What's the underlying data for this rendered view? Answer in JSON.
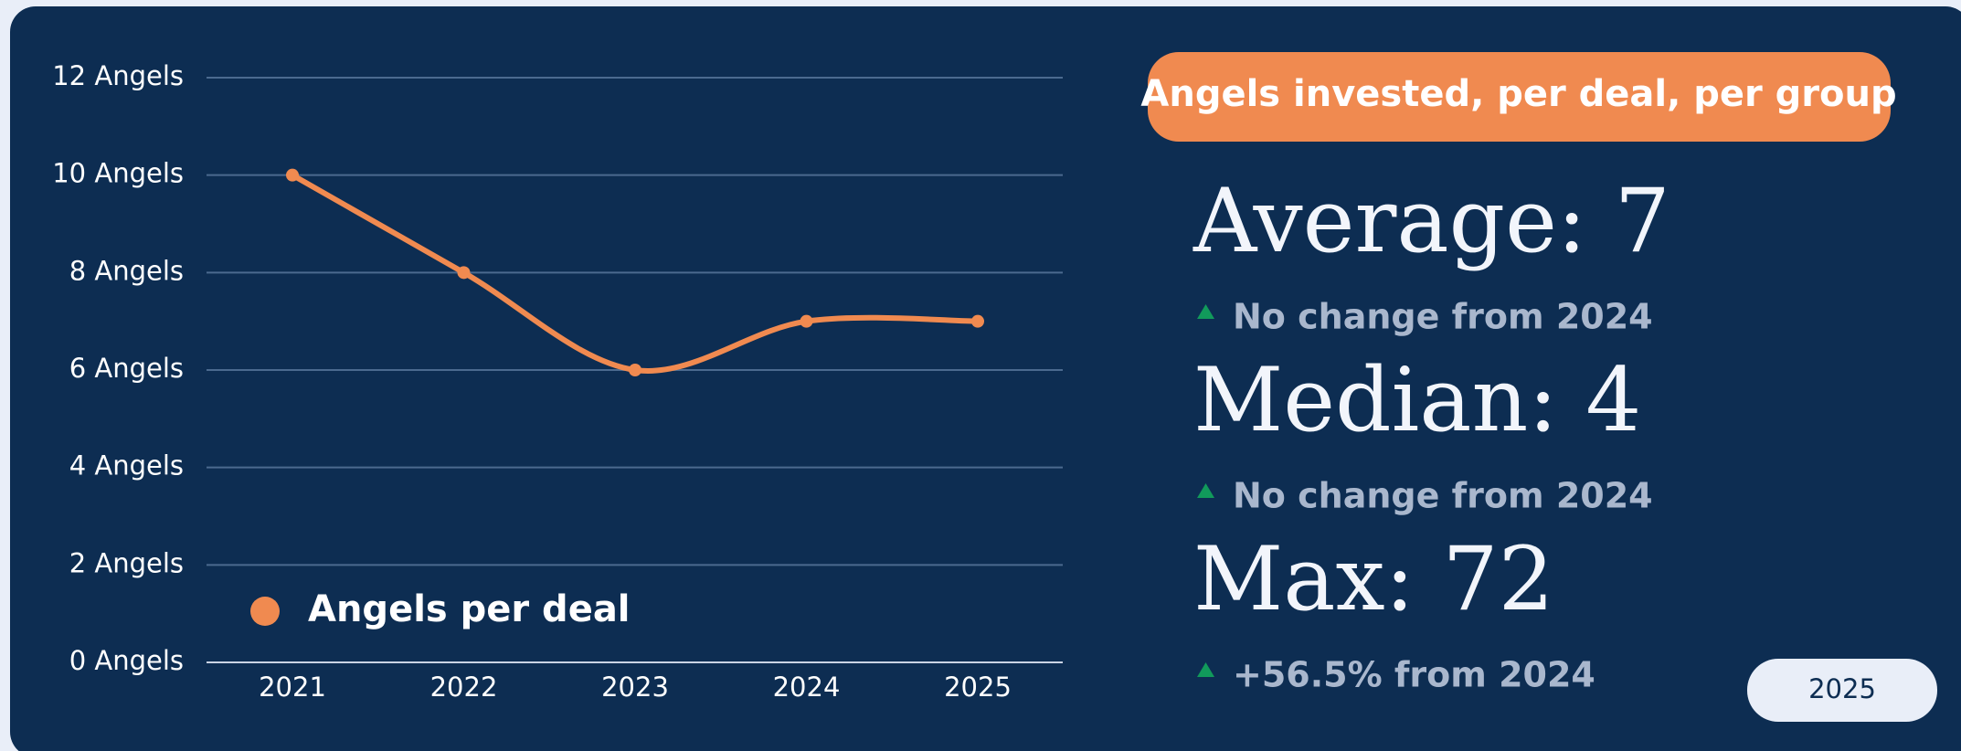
{
  "chart_data": {
    "type": "line",
    "categories": [
      "2021",
      "2022",
      "2023",
      "2024",
      "2025"
    ],
    "series": [
      {
        "name": "Angels per deal",
        "color": "#f08a50",
        "values": [
          10,
          8,
          6,
          7,
          7
        ]
      }
    ],
    "ylim": [
      0,
      12
    ],
    "yticks": [
      {
        "value": 0,
        "label": "0 Angels"
      },
      {
        "value": 2,
        "label": "2 Angels"
      },
      {
        "value": 4,
        "label": "4 Angels"
      },
      {
        "value": 6,
        "label": "6 Angels"
      },
      {
        "value": 8,
        "label": "8 Angels"
      },
      {
        "value": 10,
        "label": "10 Angels"
      },
      {
        "value": 12,
        "label": "12 Angels"
      }
    ],
    "grid": true,
    "legend": "lower left"
  },
  "panel": {
    "title": "Angels invested, per deal, per group",
    "stats": [
      {
        "label": "Average: 7",
        "change": "No change from 2024"
      },
      {
        "label": "Median: 4",
        "change": "No change from 2024"
      },
      {
        "label": "Max: 72",
        "change": "+56.5% from 2024"
      }
    ],
    "year_button": "2025"
  }
}
